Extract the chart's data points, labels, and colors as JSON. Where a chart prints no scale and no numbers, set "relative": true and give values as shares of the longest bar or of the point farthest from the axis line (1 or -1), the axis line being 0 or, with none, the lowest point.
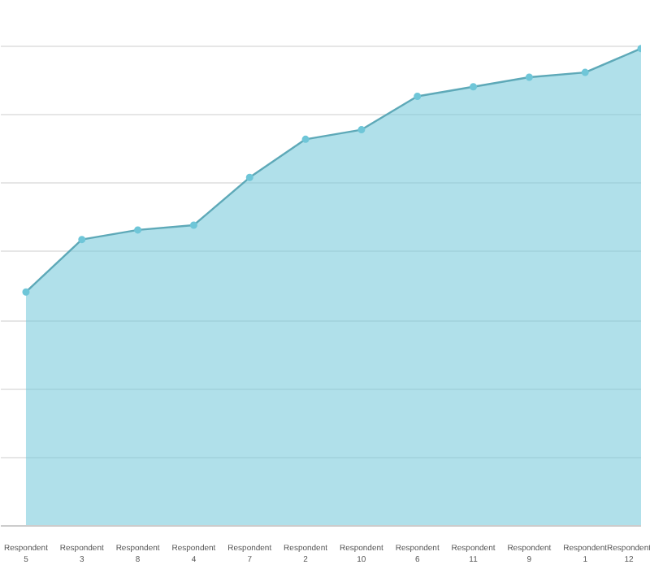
{
  "chart_data": {
    "type": "area",
    "relative": true,
    "categories": [
      "Respondent\n5",
      "Respondent\n3",
      "Respondent\n8",
      "Respondent\n4",
      "Respondent\n7",
      "Respondent\n2",
      "Respondent\n10",
      "Respondent\n6",
      "Respondent\n11",
      "Respondent\n9",
      "Respondent\n1",
      "Respondent\n12"
    ],
    "series": [
      {
        "color": "#6fc6d8",
        "values": [
          0.49,
          0.6,
          0.62,
          0.63,
          0.73,
          0.81,
          0.83,
          0.9,
          0.92,
          0.94,
          0.95,
          1.0
        ]
      }
    ],
    "marker": "circle",
    "grid": "y"
  }
}
